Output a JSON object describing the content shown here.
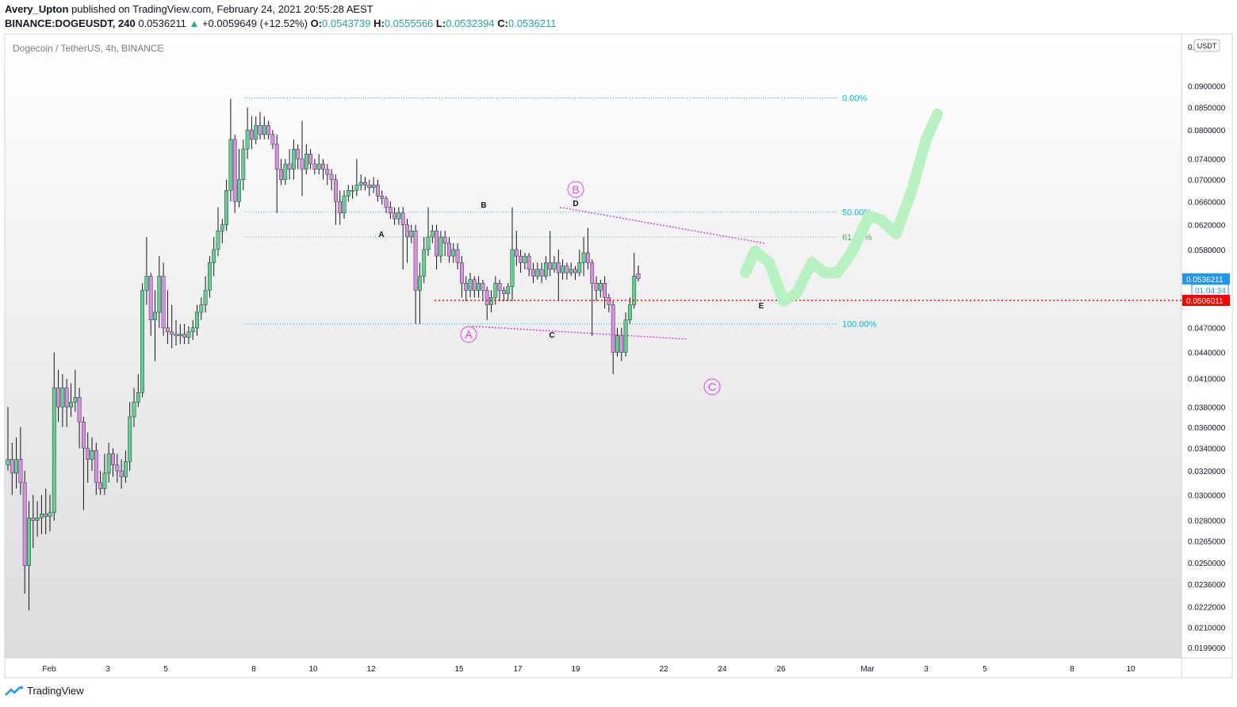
{
  "header": {
    "author": "Avery_Upton",
    "published_text": "published on TradingView.com, February 24, 2021 20:55:28 AEST",
    "symbol": "BINANCE:DOGEUSDT, 240",
    "last": "0.0536211",
    "change": "+0.0059649 (+12.52%)",
    "o_label": "O:",
    "o_value": "0.0543739",
    "h_label": "H:",
    "h_value": "0.0555566",
    "l_label": "L:",
    "l_value": "0.0532394",
    "c_label": "C:",
    "c_value": "0.0536211"
  },
  "footer": {
    "brand": "TradingView"
  },
  "colors": {
    "up": "#5fd08f",
    "down": "#d78ee0",
    "wick": "#131722",
    "fib": "#00bcd4",
    "fib618": "#4caf50",
    "red": "#ff0000",
    "magenta": "#e040fb",
    "projection": "#b9f2c2",
    "price_tag": "#2196f3"
  },
  "chart_data": {
    "type": "candlestick",
    "title": "Dogecoin / TetherUS, 4h, BINANCE",
    "currency_label": "USDT",
    "y_axis_ticks": [
      "0.0900000",
      "0.0850000",
      "0.0800000",
      "0.0740000",
      "0.0700000",
      "0.0660000",
      "0.0620000",
      "0.0580000",
      "0.0470000",
      "0.0440000",
      "0.0410000",
      "0.0380000",
      "0.0360000",
      "0.0340000",
      "0.0320000",
      "0.0300000",
      "0.0280000",
      "0.0265000",
      "0.0250000",
      "0.0236000",
      "0.0222000",
      "0.0210000",
      "0.0199000"
    ],
    "y_axis_top_label": "0.1",
    "x_axis_ticks": [
      "Feb",
      "3",
      "5",
      "8",
      "10",
      "12",
      "15",
      "17",
      "19",
      "22",
      "24",
      "26",
      "Mar",
      "3",
      "5",
      "8",
      "10"
    ],
    "price_labels": {
      "last": "0.0536211",
      "countdown": "01:04:34",
      "level": "0.0506011"
    },
    "fib_levels": [
      {
        "label": "0.00%",
        "price": 0.0872
      },
      {
        "label": "50.00%",
        "price": 0.0642
      },
      {
        "label": "61.80%",
        "price": 0.06
      },
      {
        "label": "100.00%",
        "price": 0.0475
      }
    ],
    "support_level": 0.0506011,
    "wave_labels": {
      "A_circle": "A",
      "B_circle": "B",
      "C_circle": "C",
      "A": "A",
      "B": "B",
      "C": "C",
      "D": "D",
      "E": "E"
    },
    "candles": [
      [
        0.0325,
        0.033,
        0.032,
        0.038
      ],
      [
        0.033,
        0.0318,
        0.03,
        0.0345
      ],
      [
        0.0318,
        0.033,
        0.0305,
        0.035
      ],
      [
        0.033,
        0.031,
        0.03,
        0.036
      ],
      [
        0.031,
        0.0248,
        0.023,
        0.032
      ],
      [
        0.0248,
        0.0282,
        0.022,
        0.0295
      ],
      [
        0.0282,
        0.028,
        0.026,
        0.03
      ],
      [
        0.028,
        0.0282,
        0.0268,
        0.0295
      ],
      [
        0.0282,
        0.0285,
        0.027,
        0.03
      ],
      [
        0.0285,
        0.0283,
        0.027,
        0.0305
      ],
      [
        0.0283,
        0.0286,
        0.0272,
        0.03
      ],
      [
        0.0286,
        0.04,
        0.028,
        0.044
      ],
      [
        0.04,
        0.038,
        0.0365,
        0.042
      ],
      [
        0.038,
        0.04,
        0.036,
        0.0415
      ],
      [
        0.04,
        0.038,
        0.036,
        0.041
      ],
      [
        0.038,
        0.0385,
        0.037,
        0.0405
      ],
      [
        0.0385,
        0.039,
        0.0375,
        0.042
      ],
      [
        0.039,
        0.0365,
        0.034,
        0.04
      ],
      [
        0.0365,
        0.034,
        0.0288,
        0.037
      ],
      [
        0.034,
        0.033,
        0.031,
        0.0355
      ],
      [
        0.033,
        0.0338,
        0.032,
        0.035
      ],
      [
        0.0338,
        0.031,
        0.03,
        0.0345
      ],
      [
        0.031,
        0.0305,
        0.03,
        0.032
      ],
      [
        0.0305,
        0.0318,
        0.03,
        0.0335
      ],
      [
        0.0318,
        0.0335,
        0.031,
        0.0345
      ],
      [
        0.0335,
        0.0325,
        0.0315,
        0.034
      ],
      [
        0.0325,
        0.032,
        0.031,
        0.0335
      ],
      [
        0.032,
        0.0315,
        0.0305,
        0.033
      ],
      [
        0.0315,
        0.0328,
        0.031,
        0.0338
      ],
      [
        0.0328,
        0.037,
        0.032,
        0.0385
      ],
      [
        0.037,
        0.0385,
        0.036,
        0.04
      ],
      [
        0.0385,
        0.0395,
        0.038,
        0.0415
      ],
      [
        0.0395,
        0.052,
        0.039,
        0.053
      ],
      [
        0.052,
        0.054,
        0.05,
        0.06
      ],
      [
        0.054,
        0.048,
        0.046,
        0.0545
      ],
      [
        0.048,
        0.049,
        0.043,
        0.052
      ],
      [
        0.049,
        0.054,
        0.047,
        0.057
      ],
      [
        0.054,
        0.047,
        0.046,
        0.056
      ],
      [
        0.047,
        0.0465,
        0.045,
        0.052
      ],
      [
        0.0465,
        0.0462,
        0.0445,
        0.05
      ],
      [
        0.0462,
        0.046,
        0.0448,
        0.048
      ],
      [
        0.046,
        0.0462,
        0.045,
        0.0475
      ],
      [
        0.0462,
        0.0458,
        0.045,
        0.0475
      ],
      [
        0.0458,
        0.0465,
        0.045,
        0.0472
      ],
      [
        0.0465,
        0.047,
        0.0455,
        0.048
      ],
      [
        0.047,
        0.049,
        0.046,
        0.05
      ],
      [
        0.049,
        0.05,
        0.048,
        0.051
      ],
      [
        0.05,
        0.052,
        0.049,
        0.054
      ],
      [
        0.052,
        0.056,
        0.051,
        0.057
      ],
      [
        0.056,
        0.058,
        0.054,
        0.06
      ],
      [
        0.058,
        0.061,
        0.057,
        0.065
      ],
      [
        0.061,
        0.062,
        0.059,
        0.063
      ],
      [
        0.062,
        0.068,
        0.061,
        0.07
      ],
      [
        0.068,
        0.078,
        0.066,
        0.087
      ],
      [
        0.078,
        0.066,
        0.064,
        0.079
      ],
      [
        0.066,
        0.07,
        0.065,
        0.076
      ],
      [
        0.07,
        0.076,
        0.068,
        0.078
      ],
      [
        0.076,
        0.08,
        0.074,
        0.085
      ],
      [
        0.08,
        0.078,
        0.076,
        0.083
      ],
      [
        0.078,
        0.081,
        0.077,
        0.083
      ],
      [
        0.081,
        0.079,
        0.078,
        0.084
      ],
      [
        0.079,
        0.081,
        0.078,
        0.083
      ],
      [
        0.081,
        0.079,
        0.078,
        0.082
      ],
      [
        0.079,
        0.077,
        0.076,
        0.08
      ],
      [
        0.077,
        0.072,
        0.064,
        0.079
      ],
      [
        0.072,
        0.07,
        0.069,
        0.074
      ],
      [
        0.07,
        0.073,
        0.069,
        0.074
      ],
      [
        0.073,
        0.072,
        0.07,
        0.076
      ],
      [
        0.072,
        0.076,
        0.07,
        0.078
      ],
      [
        0.076,
        0.074,
        0.072,
        0.077
      ],
      [
        0.074,
        0.072,
        0.067,
        0.082
      ],
      [
        0.072,
        0.075,
        0.071,
        0.077
      ],
      [
        0.075,
        0.073,
        0.072,
        0.076
      ],
      [
        0.073,
        0.072,
        0.071,
        0.074
      ],
      [
        0.072,
        0.073,
        0.071,
        0.075
      ],
      [
        0.073,
        0.072,
        0.07,
        0.074
      ],
      [
        0.072,
        0.071,
        0.069,
        0.073
      ],
      [
        0.071,
        0.07,
        0.068,
        0.072
      ],
      [
        0.07,
        0.066,
        0.062,
        0.071
      ],
      [
        0.066,
        0.064,
        0.062,
        0.068
      ],
      [
        0.064,
        0.067,
        0.063,
        0.068
      ],
      [
        0.067,
        0.068,
        0.066,
        0.069
      ],
      [
        0.068,
        0.068,
        0.0665,
        0.069
      ],
      [
        0.068,
        0.069,
        0.067,
        0.074
      ],
      [
        0.069,
        0.0695,
        0.068,
        0.071
      ],
      [
        0.0695,
        0.069,
        0.068,
        0.0705
      ],
      [
        0.069,
        0.0685,
        0.067,
        0.07
      ],
      [
        0.0685,
        0.069,
        0.0675,
        0.0705
      ],
      [
        0.069,
        0.067,
        0.066,
        0.07
      ],
      [
        0.067,
        0.0665,
        0.0655,
        0.068
      ],
      [
        0.0665,
        0.065,
        0.064,
        0.067
      ],
      [
        0.065,
        0.064,
        0.063,
        0.066
      ],
      [
        0.064,
        0.063,
        0.062,
        0.065
      ],
      [
        0.063,
        0.064,
        0.062,
        0.065
      ],
      [
        0.064,
        0.062,
        0.055,
        0.065
      ],
      [
        0.062,
        0.06,
        0.056,
        0.063
      ],
      [
        0.06,
        0.061,
        0.059,
        0.062
      ],
      [
        0.061,
        0.052,
        0.0475,
        0.062
      ],
      [
        0.052,
        0.054,
        0.0475,
        0.056
      ],
      [
        0.054,
        0.058,
        0.053,
        0.06
      ],
      [
        0.058,
        0.06,
        0.057,
        0.065
      ],
      [
        0.06,
        0.061,
        0.059,
        0.062
      ],
      [
        0.061,
        0.057,
        0.055,
        0.062
      ],
      [
        0.057,
        0.06,
        0.056,
        0.061
      ],
      [
        0.06,
        0.059,
        0.057,
        0.061
      ],
      [
        0.059,
        0.057,
        0.056,
        0.06
      ],
      [
        0.057,
        0.058,
        0.056,
        0.059
      ],
      [
        0.058,
        0.056,
        0.055,
        0.059
      ],
      [
        0.056,
        0.053,
        0.051,
        0.057
      ],
      [
        0.053,
        0.052,
        0.0505,
        0.054
      ],
      [
        0.052,
        0.0535,
        0.051,
        0.0545
      ],
      [
        0.0535,
        0.052,
        0.051,
        0.054
      ],
      [
        0.052,
        0.053,
        0.051,
        0.054
      ],
      [
        0.053,
        0.052,
        0.0505,
        0.0535
      ],
      [
        0.052,
        0.05,
        0.048,
        0.0525
      ],
      [
        0.05,
        0.051,
        0.049,
        0.052
      ],
      [
        0.051,
        0.053,
        0.05,
        0.054
      ],
      [
        0.053,
        0.052,
        0.0505,
        0.0535
      ],
      [
        0.052,
        0.0515,
        0.0505,
        0.0525
      ],
      [
        0.0515,
        0.0525,
        0.0505,
        0.053
      ],
      [
        0.0525,
        0.058,
        0.0505,
        0.065
      ],
      [
        0.058,
        0.057,
        0.0555,
        0.061
      ],
      [
        0.057,
        0.056,
        0.0545,
        0.058
      ],
      [
        0.056,
        0.057,
        0.055,
        0.0575
      ],
      [
        0.057,
        0.055,
        0.054,
        0.0575
      ],
      [
        0.055,
        0.054,
        0.053,
        0.056
      ],
      [
        0.054,
        0.055,
        0.0535,
        0.056
      ],
      [
        0.055,
        0.054,
        0.053,
        0.056
      ],
      [
        0.054,
        0.056,
        0.0535,
        0.057
      ],
      [
        0.056,
        0.055,
        0.054,
        0.061
      ],
      [
        0.055,
        0.056,
        0.0545,
        0.057
      ],
      [
        0.056,
        0.0545,
        0.0505,
        0.058
      ],
      [
        0.0545,
        0.0555,
        0.0535,
        0.0565
      ],
      [
        0.0555,
        0.0545,
        0.0535,
        0.056
      ],
      [
        0.0545,
        0.055,
        0.054,
        0.056
      ],
      [
        0.055,
        0.0545,
        0.0535,
        0.0555
      ],
      [
        0.0545,
        0.056,
        0.054,
        0.058
      ],
      [
        0.056,
        0.0575,
        0.054,
        0.06
      ],
      [
        0.0575,
        0.056,
        0.055,
        0.0615
      ],
      [
        0.056,
        0.053,
        0.046,
        0.0565
      ],
      [
        0.053,
        0.052,
        0.0505,
        0.054
      ],
      [
        0.052,
        0.053,
        0.051,
        0.0535
      ],
      [
        0.053,
        0.051,
        0.0495,
        0.054
      ],
      [
        0.051,
        0.05,
        0.049,
        0.0515
      ],
      [
        0.05,
        0.044,
        0.0415,
        0.0505
      ],
      [
        0.044,
        0.046,
        0.0435,
        0.047
      ],
      [
        0.046,
        0.044,
        0.043,
        0.047
      ],
      [
        0.044,
        0.048,
        0.0435,
        0.049
      ],
      [
        0.048,
        0.05,
        0.0475,
        0.051
      ],
      [
        0.05,
        0.054,
        0.0495,
        0.0575
      ],
      [
        0.0543739,
        0.0536211,
        0.0532394,
        0.0555566
      ]
    ]
  }
}
